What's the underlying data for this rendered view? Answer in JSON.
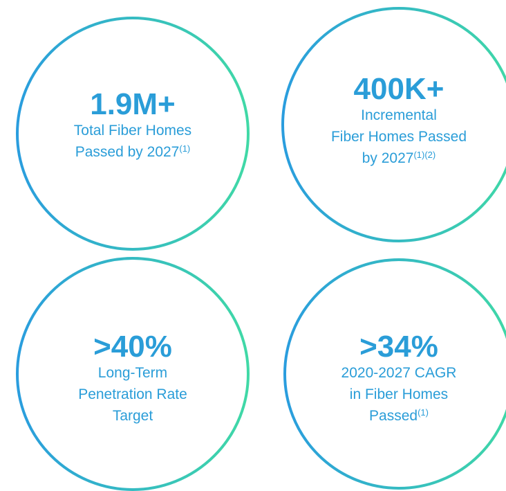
{
  "items": [
    {
      "headline": "1.9M+",
      "lines": [
        {
          "text": "Total Fiber Homes"
        },
        {
          "text": "Passed by 2027",
          "sup": "(1)"
        }
      ]
    },
    {
      "headline": "400K+",
      "lines": [
        {
          "text": "Incremental"
        },
        {
          "text": "Fiber Homes Passed"
        },
        {
          "text": "by 2027",
          "sup": "(1)(2)"
        }
      ]
    },
    {
      "headline": ">40%",
      "lines": [
        {
          "text": "Long-Term"
        },
        {
          "text": "Penetration Rate"
        },
        {
          "text": "Target"
        }
      ]
    },
    {
      "headline": ">34%",
      "lines": [
        {
          "text": "2020-2027 CAGR"
        },
        {
          "text": "in Fiber Homes"
        },
        {
          "text": "Passed",
          "sup": "(1)"
        }
      ]
    }
  ]
}
